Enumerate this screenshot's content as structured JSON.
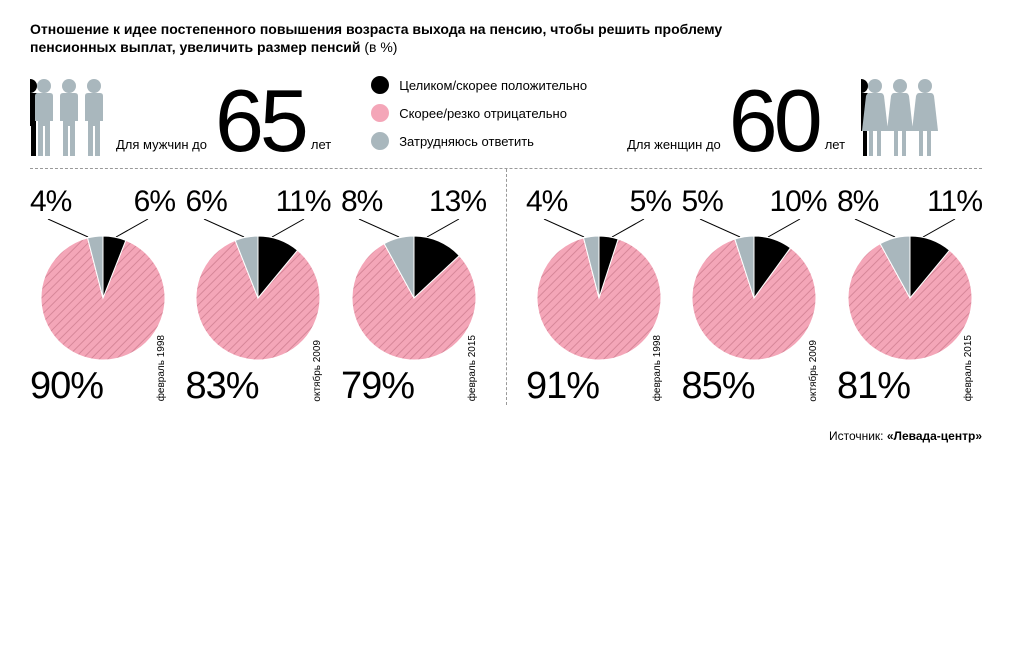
{
  "title_bold": "Отношение к идее постепенного повышения возраста выхода на пенсию, чтобы решить проблему пенсионных выплат, увеличить размер пенсий",
  "title_normal": " (в %)",
  "legend": {
    "positive": {
      "label": "Целиком/скорее положительно",
      "color": "#000000"
    },
    "negative": {
      "label": "Скорее/резко отрицательно",
      "color": "#f4a6b8"
    },
    "dontknow": {
      "label": "Затрудняюсь ответить",
      "color": "#a9b7bd"
    }
  },
  "negative_pattern_stroke": "#d68698",
  "pie_border_color": "#ffffff",
  "men": {
    "subtitle": "Для мужчин до",
    "age_number": "65",
    "age_unit": "лет",
    "icon_color": "#a9b7bd",
    "charts": [
      {
        "date": "февраль 1998",
        "dontknow": 4,
        "positive": 6,
        "negative": 90
      },
      {
        "date": "октябрь 2009",
        "dontknow": 6,
        "positive": 11,
        "negative": 83
      },
      {
        "date": "февраль 2015",
        "dontknow": 8,
        "positive": 13,
        "negative": 79
      }
    ]
  },
  "women": {
    "subtitle": "Для женщин до",
    "age_number": "60",
    "age_unit": "лет",
    "icon_color": "#a9b7bd",
    "charts": [
      {
        "date": "февраль 1998",
        "dontknow": 4,
        "positive": 5,
        "negative": 91
      },
      {
        "date": "октябрь 2009",
        "dontknow": 5,
        "positive": 10,
        "negative": 85
      },
      {
        "date": "февраль 2015",
        "dontknow": 8,
        "positive": 11,
        "negative": 81
      }
    ]
  },
  "pie_radius": 62,
  "source_prefix": "Источник: ",
  "source_name": "«Левада-центр»"
}
